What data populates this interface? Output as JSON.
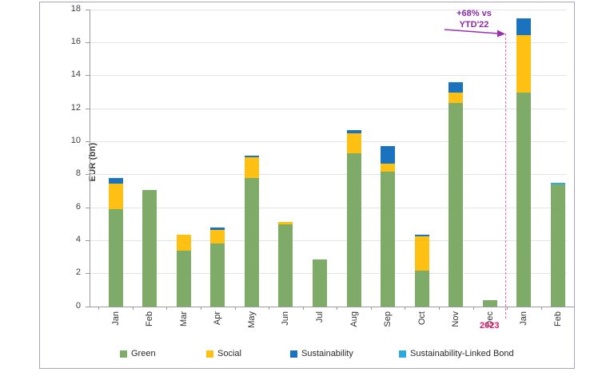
{
  "chart_data": {
    "type": "bar",
    "stacked": true,
    "ylabel": "EUR (bn)",
    "ylim": [
      0,
      18
    ],
    "ytick_step": 2,
    "grid": true,
    "legend_position": "bottom",
    "categories": [
      "Jan",
      "Feb",
      "Mar",
      "Apr",
      "May",
      "Jun",
      "Jul",
      "Aug",
      "Sep",
      "Oct",
      "Nov",
      "Dec",
      "Jan",
      "Feb"
    ],
    "series": [
      {
        "name": "Green",
        "color": "#7EAC68",
        "values": [
          5.9,
          7.05,
          3.4,
          3.8,
          7.8,
          5.0,
          2.85,
          9.3,
          8.2,
          2.2,
          12.35,
          0.4,
          12.95,
          7.4
        ]
      },
      {
        "name": "Social",
        "color": "#FDC013",
        "values": [
          1.55,
          0,
          0.95,
          0.85,
          1.25,
          0.15,
          0,
          1.2,
          0.45,
          2.05,
          0.6,
          0,
          3.5,
          0
        ]
      },
      {
        "name": "Sustainability",
        "color": "#1B73C0",
        "values": [
          0.35,
          0,
          0,
          0.15,
          0.1,
          0,
          0,
          0.2,
          1.1,
          0.1,
          0.65,
          0,
          1.0,
          0
        ]
      },
      {
        "name": "Sustainability-Linked Bond",
        "color": "#29ABE2",
        "values": [
          0,
          0,
          0,
          0,
          0,
          0,
          0,
          0,
          0,
          0,
          0,
          0,
          0,
          0.1
        ]
      }
    ]
  },
  "annotation": {
    "line1": "+68% vs",
    "line2": "YTD'22",
    "color": "#8C2BA6"
  },
  "year_divider": {
    "label": "2023",
    "label_color": "#E0186E",
    "line_color": "#ED66AD"
  }
}
